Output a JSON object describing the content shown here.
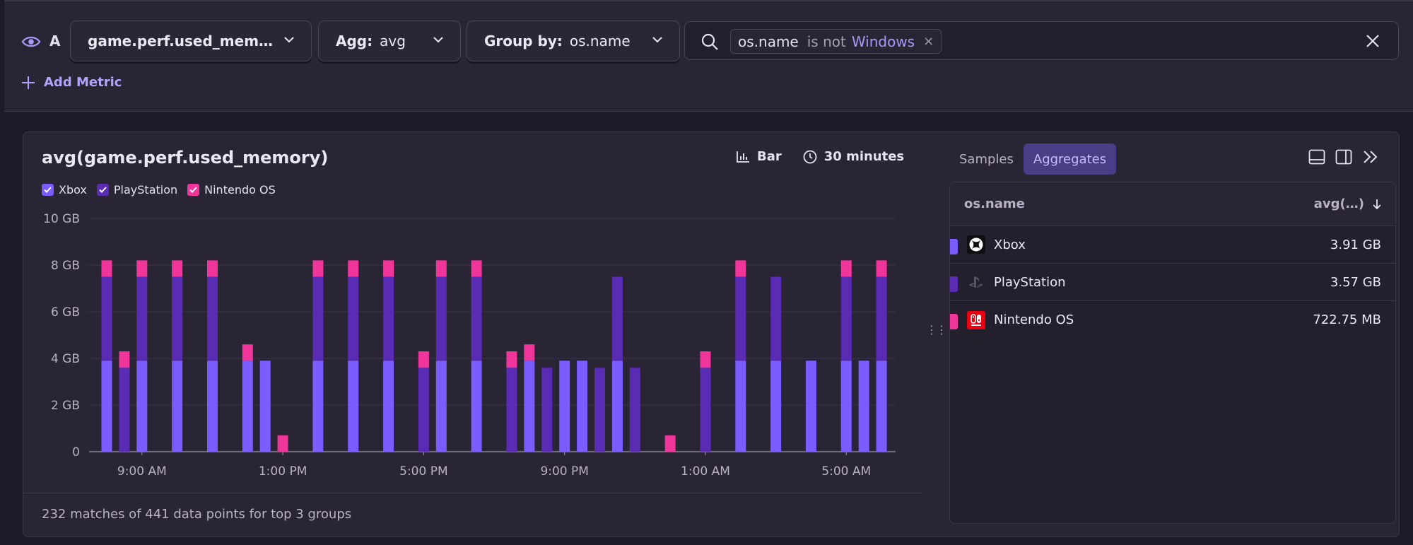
{
  "query": {
    "letter": "A",
    "metric_label": "game.perf.used_mem…",
    "agg_label": "Agg:",
    "agg_value": "avg",
    "group_label": "Group by:",
    "group_value": "os.name",
    "filter": {
      "key": "os.name",
      "operator": "is not",
      "value": "Windows",
      "remove": "×"
    },
    "add_metric": "Add Metric"
  },
  "chart": {
    "title": "avg(game.perf.used_memory)",
    "display_type": "Bar",
    "interval": "30 minutes",
    "footer": "232 matches of 441 data points for top 3 groups"
  },
  "chart_data": {
    "type": "bar",
    "stacked": true,
    "y_ticks": [
      "0",
      "2 GB",
      "4 GB",
      "6 GB",
      "8 GB",
      "10 GB"
    ],
    "ylim": [
      0,
      10
    ],
    "x_ticks": [
      "9:00 AM",
      "1:00 PM",
      "5:00 PM",
      "9:00 PM",
      "1:00 AM",
      "5:00 AM"
    ],
    "x_tick_index": [
      2,
      10,
      18,
      26,
      34,
      42
    ],
    "series": [
      {
        "name": "Xbox",
        "color": "#7b5cff",
        "values": [
          3.9,
          null,
          3.9,
          null,
          3.9,
          null,
          3.9,
          null,
          3.9,
          3.9,
          null,
          null,
          3.9,
          null,
          3.9,
          null,
          3.9,
          null,
          null,
          3.9,
          null,
          3.9,
          null,
          null,
          3.9,
          null,
          3.9,
          3.9,
          null,
          3.9,
          null,
          null,
          null,
          null,
          null,
          null,
          3.9,
          null,
          3.9,
          null,
          3.9,
          null,
          3.9,
          3.9,
          3.9
        ]
      },
      {
        "name": "PlayStation",
        "color": "#5a2bb3",
        "values": [
          3.6,
          3.6,
          3.6,
          null,
          3.6,
          null,
          3.6,
          null,
          null,
          null,
          null,
          null,
          3.6,
          null,
          3.6,
          null,
          3.6,
          null,
          3.6,
          3.6,
          null,
          3.6,
          null,
          3.6,
          null,
          3.6,
          null,
          null,
          3.6,
          3.6,
          3.6,
          null,
          null,
          null,
          3.6,
          null,
          3.6,
          null,
          3.6,
          null,
          null,
          null,
          3.6,
          null,
          3.6
        ]
      },
      {
        "name": "Nintendo OS",
        "color": "#f0369a",
        "values": [
          0.7,
          0.7,
          0.7,
          null,
          0.7,
          null,
          0.7,
          null,
          0.7,
          null,
          0.7,
          null,
          0.7,
          null,
          0.7,
          null,
          0.7,
          null,
          0.7,
          0.7,
          null,
          0.7,
          null,
          0.7,
          0.7,
          null,
          null,
          null,
          null,
          null,
          null,
          null,
          0.7,
          null,
          0.7,
          null,
          0.7,
          null,
          null,
          null,
          null,
          null,
          0.7,
          null,
          0.7
        ]
      }
    ],
    "legend": "top-left",
    "grid": true
  },
  "legend": [
    {
      "name": "Xbox",
      "color": "#7b5cff"
    },
    {
      "name": "PlayStation",
      "color": "#5a2bb3"
    },
    {
      "name": "Nintendo OS",
      "color": "#f0369a"
    }
  ],
  "side": {
    "tab_samples": "Samples",
    "tab_aggregates": "Aggregates",
    "col_name": "os.name",
    "col_value": "avg(…)",
    "rows": [
      {
        "name": "Xbox",
        "value": "3.91 GB",
        "color": "#7b5cff",
        "icon": "xbox-icon"
      },
      {
        "name": "PlayStation",
        "value": "3.57 GB",
        "color": "#5a2bb3",
        "icon": "playstation-icon"
      },
      {
        "name": "Nintendo OS",
        "value": "722.75 MB",
        "color": "#f0369a",
        "icon": "nintendo-icon"
      }
    ]
  }
}
